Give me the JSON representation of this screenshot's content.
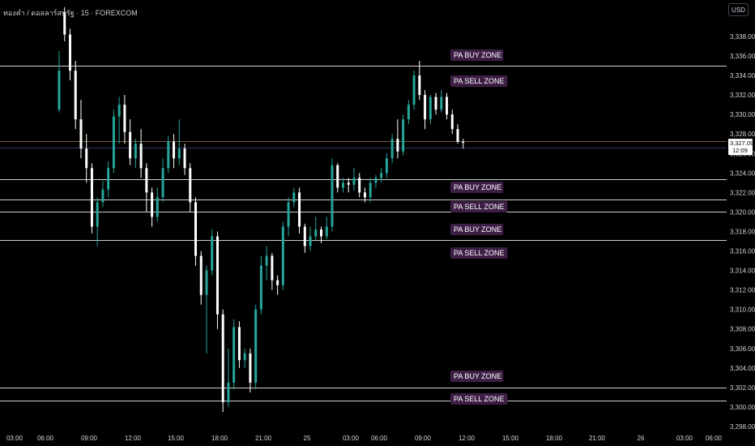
{
  "header": {
    "symbol_title": "ทองคำ / ดอลลาร์สหรัฐ · 15 · FOREXCOM",
    "currency": "USD"
  },
  "colors": {
    "background": "#000000",
    "up_candle": "#26a69a",
    "down_candle": "#ffffff",
    "zone_line": "#cfcfcf",
    "zone_label_bg": "#3d1f45",
    "zone_label_text": "#ffffff",
    "price_tag_bg": "#ffffff",
    "price_tag_text": "#000000",
    "axis_text": "#d1d4dc"
  },
  "chart_data": {
    "type": "candlestick",
    "timeframe": "15",
    "symbol": "ทองคำ / ดอลลาร์สหรัฐ · FOREXCOM",
    "ylim": [
      3297.5,
      3340
    ],
    "y_ticks": [
      3298,
      3300,
      3302,
      3304,
      3306,
      3308,
      3310,
      3312,
      3314,
      3316,
      3318,
      3320,
      3322,
      3324,
      3326,
      3328,
      3330,
      3332,
      3334,
      3336,
      3338
    ],
    "y_tick_labels": [
      "3,298.00",
      "3,300.00",
      "3,302.00",
      "3,304.00",
      "3,306.00",
      "3,308.00",
      "3,310.00",
      "3,312.00",
      "3,314.00",
      "3,316.00",
      "3,318.00",
      "3,320.00",
      "3,322.00",
      "3,324.00",
      "3,326.00",
      "3,328.00",
      "3,330.00",
      "3,332.00",
      "3,334.00",
      "3,336.00",
      "3,338.00"
    ],
    "x_ticks": [
      "03:00",
      "06:00",
      "09:00",
      "12:00",
      "15:00",
      "18:00",
      "21:00",
      "25",
      "03:00",
      "06:00",
      "09:00",
      "12:00",
      "15:00",
      "18:00",
      "21:00",
      "26",
      "03:00",
      "06:00"
    ],
    "current_price": {
      "value": 3327.09,
      "label": "3,327.09",
      "countdown": "12:09"
    },
    "reference_price_lines": [
      3327.3,
      3326.6
    ],
    "zones": [
      {
        "label": "PA BUY ZONE",
        "price": 3335
      },
      {
        "label": "PA SELL ZONE",
        "price": 3335
      },
      {
        "label": "PA BUY ZONE",
        "price": 3323.4
      },
      {
        "label": "PA SELL ZONE",
        "price": 3321.3
      },
      {
        "label": "PA BUY ZONE",
        "price": 3320
      },
      {
        "label": "PA SELL ZONE",
        "price": 3317.1
      },
      {
        "label": "PA BUY ZONE",
        "price": 3302
      },
      {
        "label": "PA SELL ZONE",
        "price": 3300.7
      }
    ],
    "candles": [
      [
        3330.5,
        3336.5,
        3330.2,
        3334.5
      ],
      [
        3340.5,
        3341,
        3337.5,
        3338.2
      ],
      [
        3338.2,
        3338.8,
        3333.5,
        3334.5
      ],
      [
        3334.5,
        3335.5,
        3328.5,
        3329.5
      ],
      [
        3329.5,
        3331.5,
        3325.5,
        3326.5
      ],
      [
        3326.5,
        3328,
        3323,
        3324.5
      ],
      [
        3324.5,
        3325,
        3317.8,
        3318.5
      ],
      [
        3318.5,
        3321.5,
        3316.5,
        3321
      ],
      [
        3321,
        3323.2,
        3320.5,
        3322.3
      ],
      [
        3322.3,
        3325.2,
        3321.5,
        3324.5
      ],
      [
        3324.5,
        3330.5,
        3324,
        3329.8
      ],
      [
        3329.8,
        3331.8,
        3327,
        3331
      ],
      [
        3331,
        3332,
        3327,
        3328.2
      ],
      [
        3328.2,
        3329.5,
        3324.8,
        3325.5
      ],
      [
        3325.5,
        3327.5,
        3324.5,
        3327
      ],
      [
        3327,
        3328.5,
        3323.5,
        3324.5
      ],
      [
        3324.5,
        3325,
        3320,
        3322
      ],
      [
        3322,
        3322.5,
        3318.5,
        3319.5
      ],
      [
        3319.5,
        3322.5,
        3319,
        3321.5
      ],
      [
        3321.5,
        3325.5,
        3321,
        3324.5
      ],
      [
        3324.5,
        3327.8,
        3324,
        3327.2
      ],
      [
        3327.2,
        3328,
        3324.5,
        3325.5
      ],
      [
        3325.5,
        3329.5,
        3324.8,
        3326.5
      ],
      [
        3326.5,
        3327,
        3323.8,
        3324.5
      ],
      [
        3324.5,
        3325,
        3320,
        3321
      ],
      [
        3321,
        3321.5,
        3314.5,
        3315.5
      ],
      [
        3315.5,
        3316,
        3310.5,
        3311.5
      ],
      [
        3311.5,
        3314.5,
        3305.5,
        3314
      ],
      [
        3314,
        3318.2,
        3313.5,
        3317.5
      ],
      [
        3317.5,
        3318,
        3308,
        3309.5
      ],
      [
        3309.5,
        3310,
        3299.5,
        3300.5
      ],
      [
        3300.5,
        3306,
        3300,
        3302.5
      ],
      [
        3302.5,
        3309,
        3301.8,
        3308.2
      ],
      [
        3308.2,
        3308.8,
        3304,
        3304.8
      ],
      [
        3304.8,
        3306,
        3304,
        3305.5
      ],
      [
        3305.5,
        3306,
        3301.5,
        3302.5
      ],
      [
        3302.5,
        3310.5,
        3301.8,
        3310
      ],
      [
        3310,
        3315.5,
        3309.5,
        3314.5
      ],
      [
        3314.5,
        3316.5,
        3313,
        3315.5
      ],
      [
        3315.5,
        3315.8,
        3312,
        3313
      ],
      [
        3313,
        3313.5,
        3311.5,
        3312.5
      ],
      [
        3312.5,
        3319,
        3312,
        3318.5
      ],
      [
        3318.5,
        3321.5,
        3317.5,
        3321
      ],
      [
        3321,
        3322.5,
        3320.5,
        3322
      ],
      [
        3322,
        3322.5,
        3317.8,
        3318.5
      ],
      [
        3318.5,
        3318.8,
        3315.8,
        3316.5
      ],
      [
        3316.5,
        3318.5,
        3316,
        3317.5
      ],
      [
        3317.5,
        3319.5,
        3317,
        3318.2
      ],
      [
        3318.2,
        3318.5,
        3316.8,
        3317.5
      ],
      [
        3317.5,
        3319.5,
        3317.2,
        3318.5
      ],
      [
        3318.5,
        3325.5,
        3318,
        3324.8
      ],
      [
        3324.8,
        3325,
        3322,
        3322.5
      ],
      [
        3322.5,
        3323.5,
        3322,
        3323
      ],
      [
        3323,
        3323.5,
        3322,
        3322.8
      ],
      [
        3322.8,
        3324.5,
        3322.2,
        3323.5
      ],
      [
        3323.5,
        3324,
        3321.5,
        3322
      ],
      [
        3322,
        3322.5,
        3321,
        3321.5
      ],
      [
        3321.5,
        3323.5,
        3321,
        3323
      ],
      [
        3323,
        3323.8,
        3322.5,
        3323.5
      ],
      [
        3323.5,
        3324.5,
        3323,
        3324
      ],
      [
        3324,
        3326,
        3323.5,
        3325.5
      ],
      [
        3325.5,
        3328,
        3325,
        3327.5
      ],
      [
        3327.5,
        3329.5,
        3325.5,
        3326.2
      ],
      [
        3326.2,
        3330,
        3325.8,
        3329.5
      ],
      [
        3329.5,
        3331.5,
        3329,
        3331
      ],
      [
        3331,
        3334.5,
        3330.5,
        3334
      ],
      [
        3334,
        3335.5,
        3331.5,
        3332
      ],
      [
        3332,
        3332.5,
        3328.5,
        3329.5
      ],
      [
        3329.5,
        3332,
        3329,
        3331.8
      ],
      [
        3331.8,
        3332.2,
        3330,
        3330.5
      ],
      [
        3330.5,
        3332.5,
        3330.2,
        3331.8
      ],
      [
        3331.8,
        3332.2,
        3329.5,
        3330
      ],
      [
        3330,
        3330.5,
        3328,
        3328.5
      ],
      [
        3328.5,
        3329,
        3327,
        3327.2
      ],
      [
        3327.2,
        3327.5,
        3326.5,
        3327.09
      ]
    ]
  }
}
